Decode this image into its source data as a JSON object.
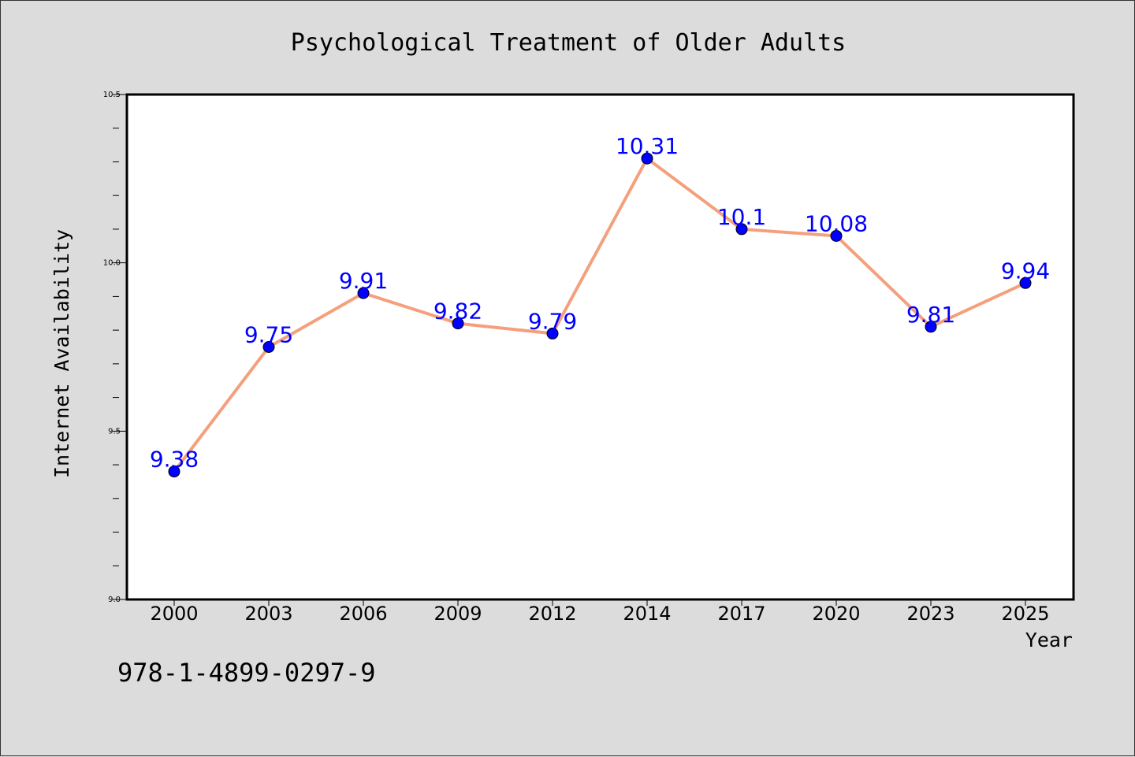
{
  "chart_data": {
    "type": "line",
    "title": "Psychological Treatment of Older Adults",
    "xlabel": "Year",
    "ylabel": "Internet Availability",
    "categories": [
      "2000",
      "2003",
      "2006",
      "2009",
      "2012",
      "2014",
      "2017",
      "2020",
      "2023",
      "2025"
    ],
    "series": [
      {
        "values": [
          9.38,
          9.75,
          9.91,
          9.82,
          9.79,
          10.31,
          10.1,
          10.08,
          9.81,
          9.94
        ],
        "data_labels": [
          "9.38",
          "9.75",
          "9.91",
          "9.82",
          "9.79",
          "10.31",
          "10.1",
          "10.08",
          "9.81",
          "9.94"
        ],
        "line_color": "#f4a07c",
        "marker_color": "#0000ff",
        "label_color": "#0000ff"
      }
    ],
    "ylim": [
      9.0,
      10.5
    ],
    "y_ticks": [
      9.0,
      9.5,
      10.0,
      10.5
    ],
    "y_tick_labels": [
      "9.0",
      "9.5",
      "10.0",
      "10.5"
    ],
    "y_minor_ticks": [
      9.1,
      9.2,
      9.3,
      9.4,
      9.6,
      9.7,
      9.8,
      9.9,
      10.1,
      10.2,
      10.3,
      10.4
    ],
    "grid": false,
    "legend": "none",
    "plot_background": "#ffffff",
    "figure_background": "#dcdcdc"
  },
  "footer": {
    "isbn": "978-1-4899-0297-9"
  }
}
